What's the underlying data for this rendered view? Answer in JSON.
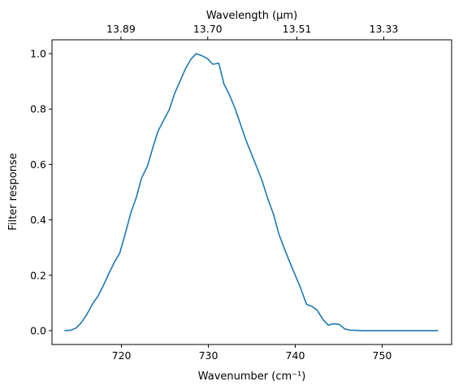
{
  "chart_data": {
    "type": "line",
    "title": "",
    "xlabel": "Wavenumber (cm⁻¹)",
    "ylabel": "Filter response",
    "top_xlabel": "Wavelength (μm)",
    "xlim": [
      712,
      758
    ],
    "ylim": [
      -0.05,
      1.05
    ],
    "x_ticks": [
      720,
      730,
      740,
      750
    ],
    "x_tick_labels": [
      "720",
      "730",
      "740",
      "750"
    ],
    "y_ticks": [
      0.0,
      0.2,
      0.4,
      0.6,
      0.8,
      1.0
    ],
    "y_tick_labels": [
      "0.0",
      "0.2",
      "0.4",
      "0.6",
      "0.8",
      "1.0"
    ],
    "top_x_ticks": [
      13.89,
      13.7,
      13.51,
      13.33
    ],
    "top_x_tick_labels": [
      "13.89",
      "13.70",
      "13.51",
      "13.33"
    ],
    "grid": false,
    "series": [
      {
        "color": "#1f77b4",
        "x": [
          713.5,
          714.2,
          714.8,
          715.4,
          716.0,
          716.7,
          717.3,
          717.9,
          718.6,
          719.2,
          719.8,
          720.5,
          721.1,
          721.7,
          722.3,
          723.0,
          723.6,
          724.2,
          724.9,
          725.5,
          726.1,
          726.8,
          727.4,
          728.0,
          728.6,
          729.3,
          729.9,
          730.5,
          731.2,
          731.8,
          732.4,
          733.1,
          733.7,
          734.3,
          735.0,
          735.6,
          736.2,
          736.8,
          737.5,
          738.1,
          738.7,
          739.4,
          740.0,
          740.6,
          741.3,
          741.9,
          742.5,
          743.2,
          743.8,
          744.4,
          745.1,
          745.7,
          746.3,
          746.9,
          747.6,
          748.2,
          748.8,
          749.5,
          750.1,
          750.7,
          751.4,
          752.0,
          752.6,
          753.3,
          753.9,
          754.5,
          755.2,
          755.8,
          756.4
        ],
        "values": [
          0.0,
          0.002,
          0.01,
          0.03,
          0.058,
          0.098,
          0.125,
          0.162,
          0.21,
          0.248,
          0.28,
          0.358,
          0.428,
          0.48,
          0.55,
          0.595,
          0.66,
          0.72,
          0.762,
          0.798,
          0.855,
          0.905,
          0.948,
          0.98,
          1.0,
          0.992,
          0.982,
          0.962,
          0.965,
          0.89,
          0.853,
          0.8,
          0.745,
          0.69,
          0.635,
          0.588,
          0.54,
          0.48,
          0.42,
          0.35,
          0.3,
          0.245,
          0.2,
          0.155,
          0.095,
          0.088,
          0.075,
          0.04,
          0.02,
          0.025,
          0.022,
          0.006,
          0.002,
          0.001,
          0.0,
          0.0,
          0.0,
          0.0,
          0.0,
          0.0,
          0.0,
          0.0,
          0.0,
          0.0,
          0.0,
          0.0,
          0.0,
          0.0,
          0.0
        ]
      }
    ]
  }
}
